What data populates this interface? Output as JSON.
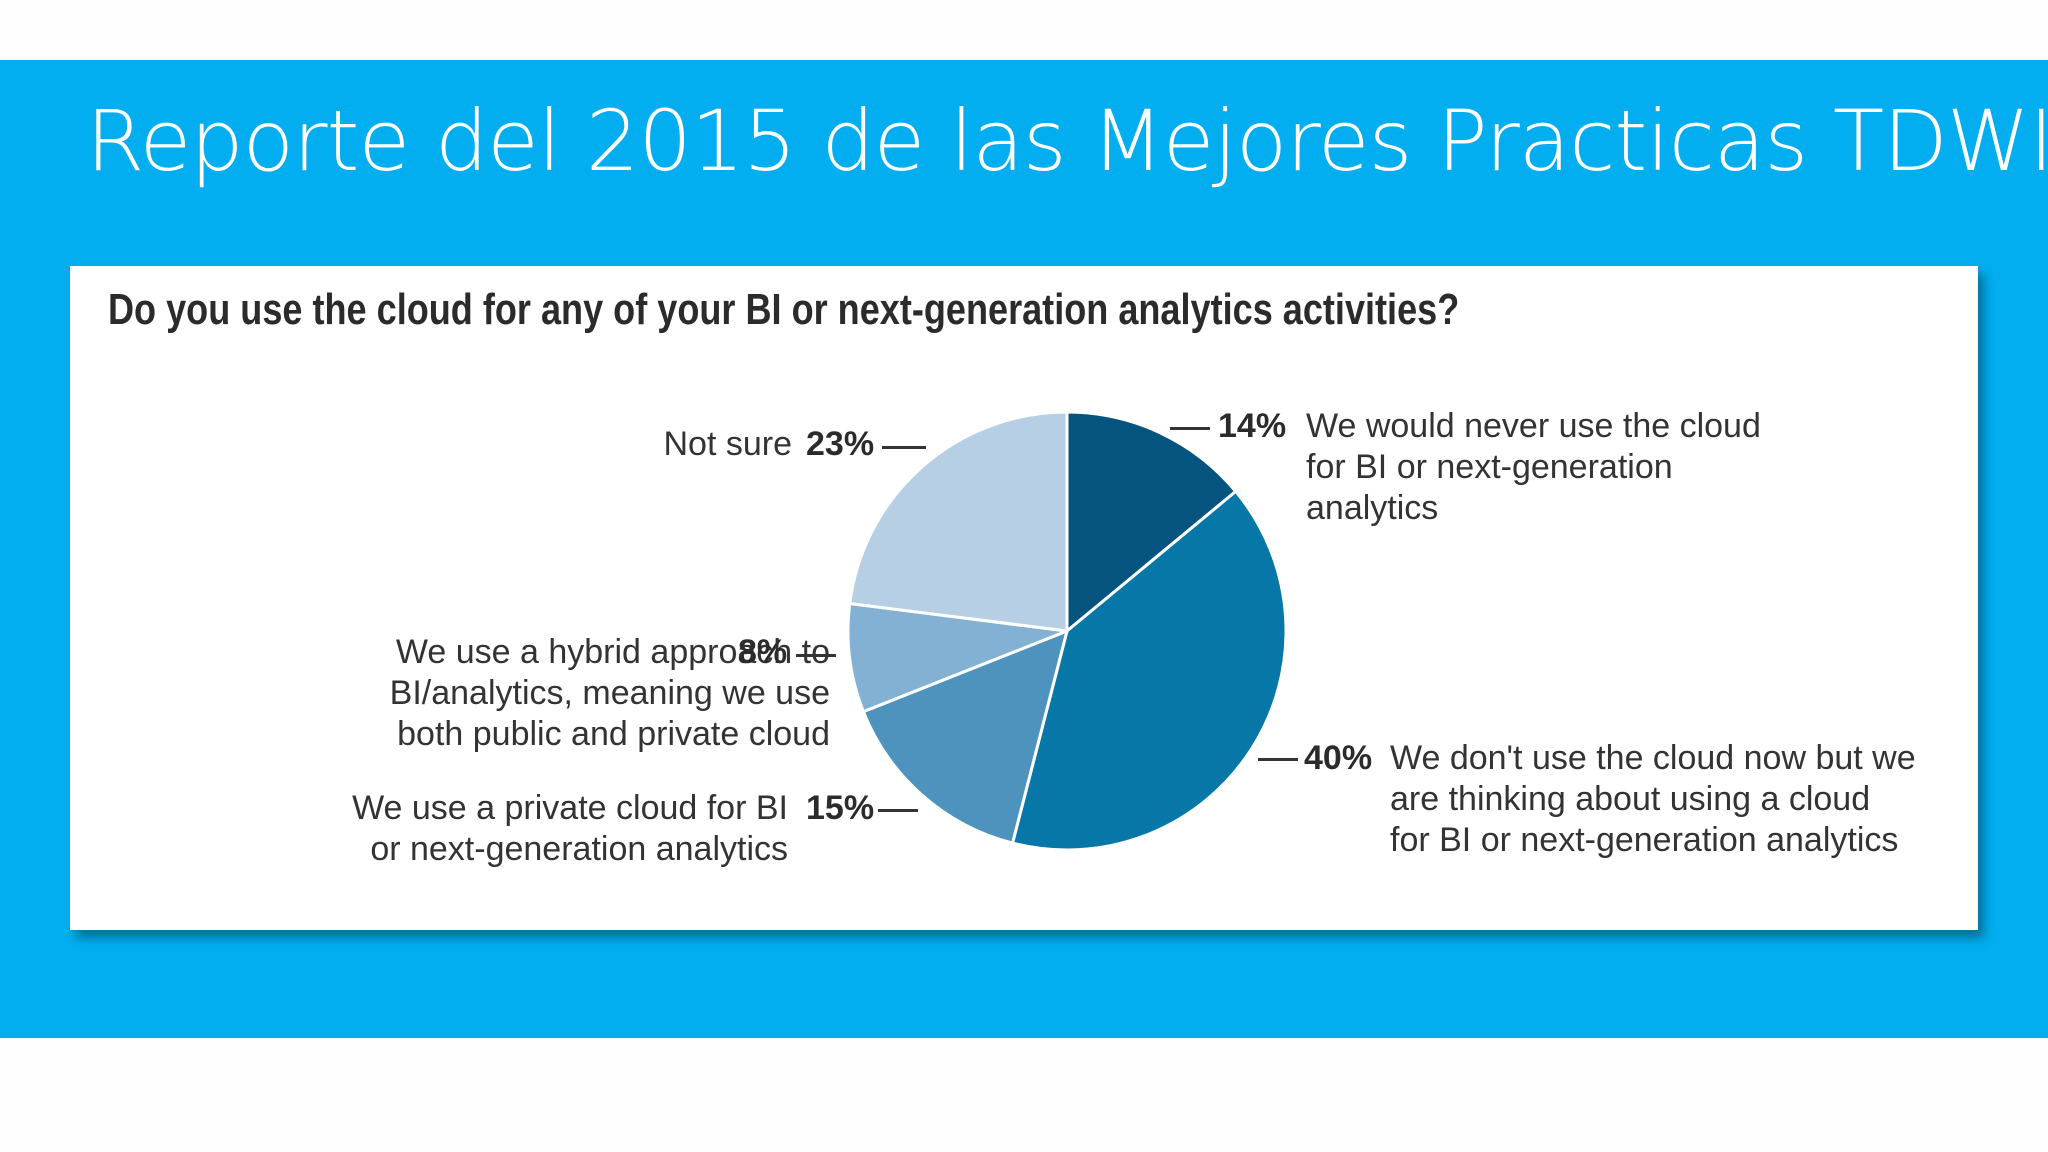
{
  "slide": {
    "title": "Reporte del 2015 de las Mejores Practicas TDWI"
  },
  "chart_data": {
    "type": "pie",
    "title": "Do you use the cloud for any of your BI or next-generation analytics activities?",
    "slices": [
      {
        "label": "We would never use the cloud for BI or next-generation analytics",
        "value": 14,
        "value_label": "14%",
        "color": "#04547f"
      },
      {
        "label": "We don't use the cloud now but we are thinking about using a cloud for BI or next-generation analytics",
        "value": 40,
        "value_label": "40%",
        "color": "#0677a7"
      },
      {
        "label": "We use a private cloud for BI or next-generation analytics",
        "value": 15,
        "value_label": "15%",
        "color": "#4e93bd"
      },
      {
        "label": "We use a hybrid approach to BI/analytics, meaning we use both public and private cloud",
        "value": 8,
        "value_label": "8%",
        "color": "#83b1d3"
      },
      {
        "label": "Not sure",
        "value": 23,
        "value_label": "23%",
        "color": "#b7cfe4"
      }
    ],
    "start_angle": "12 o'clock, clockwise",
    "label_lines": {
      "never": [
        "We would never use the cloud",
        "for BI or next-generation",
        "analytics"
      ],
      "thinking": [
        "We don't use the cloud now but we",
        "are thinking about using a cloud",
        "for BI or next-generation analytics"
      ],
      "private": [
        "We use a private cloud for BI",
        "or next-generation analytics"
      ],
      "hybrid": [
        "We use a hybrid approach to",
        "BI/analytics, meaning we use",
        "both public and private cloud"
      ],
      "notsure": [
        "Not sure"
      ]
    }
  }
}
